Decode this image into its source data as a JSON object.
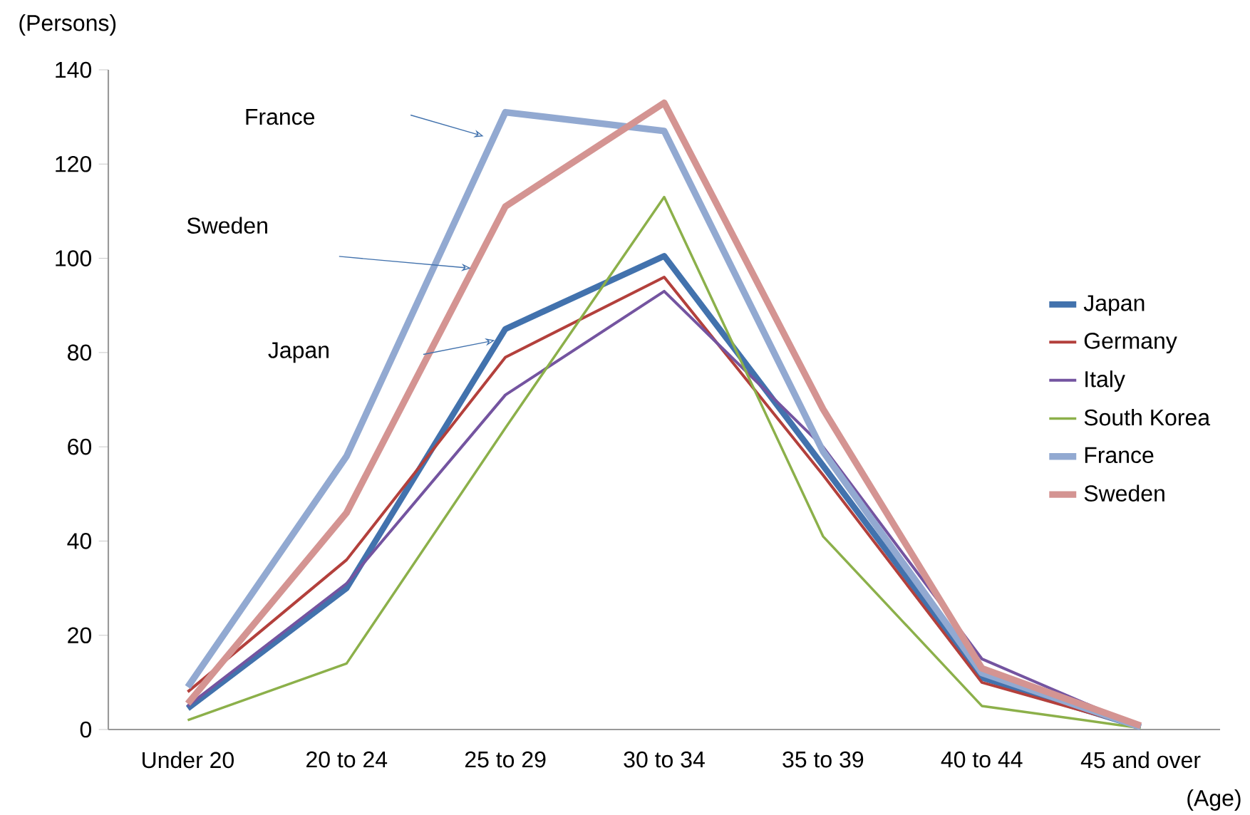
{
  "chart_data": {
    "type": "line",
    "xlabel": "(Age)",
    "ylabel": "(Persons)",
    "categories": [
      "Under 20",
      "20 to 24",
      "25 to 29",
      "30 to 34",
      "35 to 39",
      "40 to 44",
      "45 and over"
    ],
    "series": [
      {
        "name": "Japan",
        "color": "#4272ad",
        "values": [
          4.5,
          30,
          85,
          100.5,
          56,
          11,
          0.5
        ]
      },
      {
        "name": "Germany",
        "color": "#b3403c",
        "values": [
          8,
          36,
          79,
          96,
          54,
          10,
          0.5
        ]
      },
      {
        "name": "Italy",
        "color": "#7454a0",
        "values": [
          5,
          31,
          71,
          93,
          60,
          15,
          0.5
        ]
      },
      {
        "name": "South Korea",
        "color": "#8cb04a",
        "values": [
          2,
          14,
          64,
          113,
          41,
          5,
          0.3
        ]
      },
      {
        "name": "France",
        "color": "#92a9d1",
        "values": [
          9,
          58,
          131,
          127,
          59,
          12,
          0.5
        ]
      },
      {
        "name": "Sweden",
        "color": "#d49492",
        "values": [
          5.5,
          46,
          111,
          133,
          68,
          13,
          0.8
        ]
      }
    ],
    "annotations": [
      "France",
      "Sweden",
      "Japan"
    ],
    "ylim": [
      0,
      140
    ],
    "yticks": [
      0,
      20,
      40,
      60,
      80,
      100,
      120,
      140
    ],
    "legend": "right",
    "grid": false,
    "line_style": "solid"
  }
}
